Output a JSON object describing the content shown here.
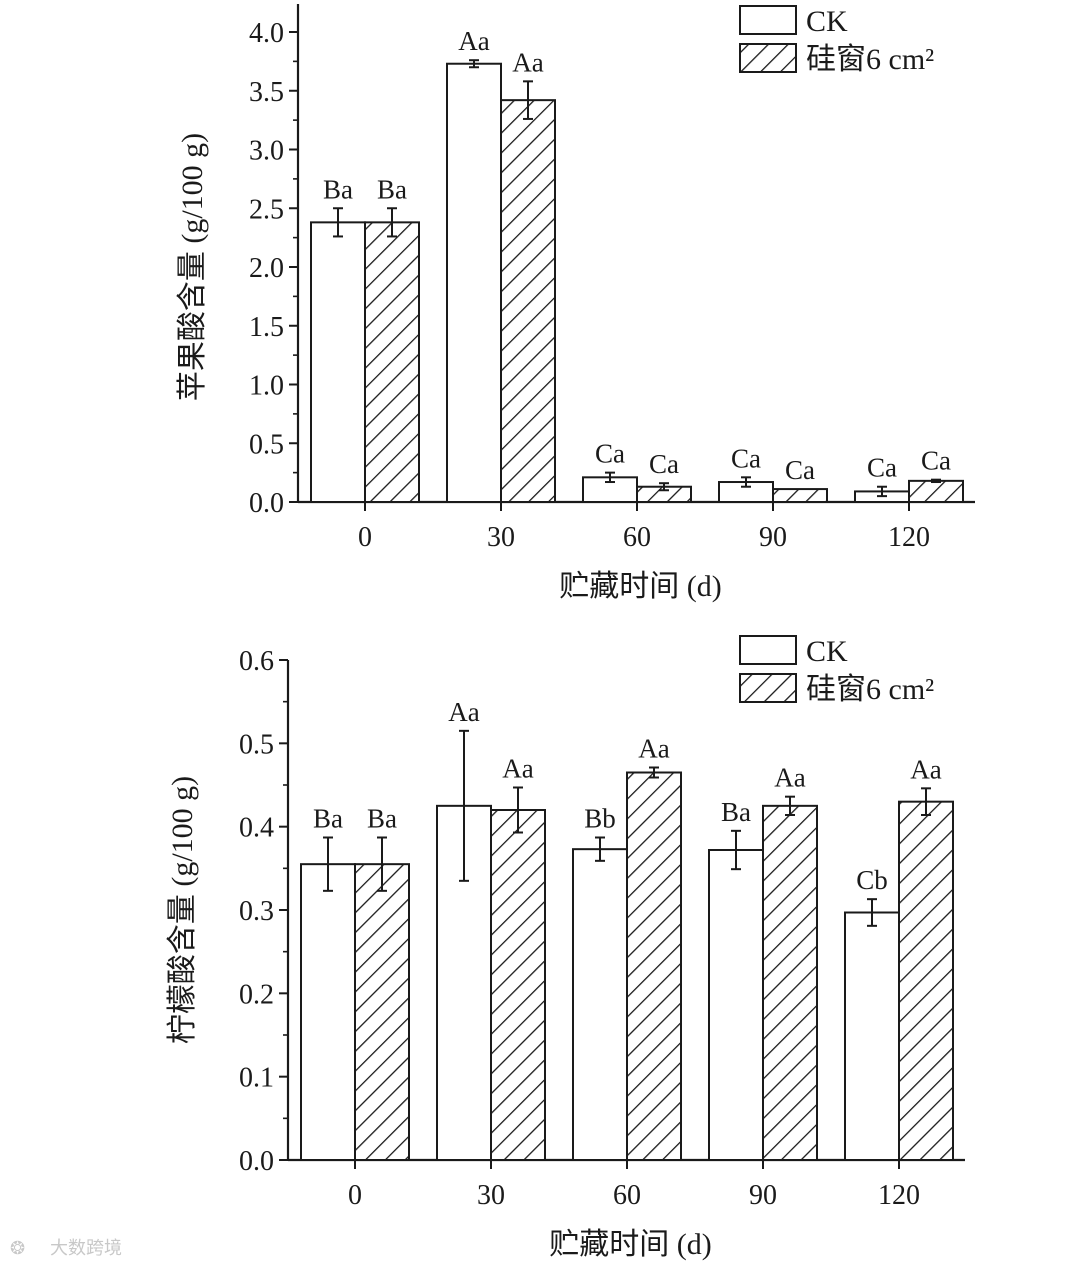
{
  "colors": {
    "ink": "#1a1a1a",
    "ck_fill": "#ffffff",
    "hatch": "#1a1a1a"
  },
  "watermark": "大数跨境",
  "chart_data": [
    {
      "type": "bar",
      "categories": [
        "0",
        "30",
        "60",
        "90",
        "120"
      ],
      "xlabel": "贮藏时间 (d)",
      "ylabel": "苹果酸含量 (g/100 g)",
      "ylim": [
        0,
        4.0
      ],
      "yticks": [
        "0.0",
        "0.5",
        "1.0",
        "1.5",
        "2.0",
        "2.5",
        "3.0",
        "3.5",
        "4.0"
      ],
      "legend_position": "top-right",
      "series": [
        {
          "name": "CK",
          "pattern": "solid-white",
          "values": [
            2.38,
            3.73,
            0.21,
            0.17,
            0.09
          ],
          "errors": [
            0.12,
            0.03,
            0.04,
            0.04,
            0.04
          ],
          "labels": [
            "Ba",
            "Aa",
            "Ca",
            "Ca",
            "Ca"
          ]
        },
        {
          "name": "硅窗6 cm²",
          "pattern": "hatched",
          "values": [
            2.38,
            3.42,
            0.13,
            0.11,
            0.18
          ],
          "errors": [
            0.12,
            0.16,
            0.03,
            0.0,
            0.01
          ],
          "labels": [
            "Ba",
            "Aa",
            "Ca",
            "Ca",
            "Ca"
          ]
        }
      ]
    },
    {
      "type": "bar",
      "categories": [
        "0",
        "30",
        "60",
        "90",
        "120"
      ],
      "xlabel": "贮藏时间 (d)",
      "ylabel": "柠檬酸含量 (g/100 g)",
      "ylim": [
        0,
        0.6
      ],
      "yticks": [
        "0.0",
        "0.1",
        "0.2",
        "0.3",
        "0.4",
        "0.5",
        "0.6"
      ],
      "legend_position": "top-right",
      "series": [
        {
          "name": "CK",
          "pattern": "solid-white",
          "values": [
            0.355,
            0.425,
            0.373,
            0.372,
            0.297
          ],
          "errors": [
            0.032,
            0.09,
            0.014,
            0.023,
            0.016
          ],
          "labels": [
            "Ba",
            "Aa",
            "Bb",
            "Ba",
            "Cb"
          ]
        },
        {
          "name": "硅窗6 cm²",
          "pattern": "hatched",
          "values": [
            0.355,
            0.42,
            0.465,
            0.425,
            0.43
          ],
          "errors": [
            0.032,
            0.027,
            0.006,
            0.011,
            0.016
          ],
          "labels": [
            "Ba",
            "Aa",
            "Aa",
            "Aa",
            "Aa"
          ]
        }
      ]
    }
  ]
}
